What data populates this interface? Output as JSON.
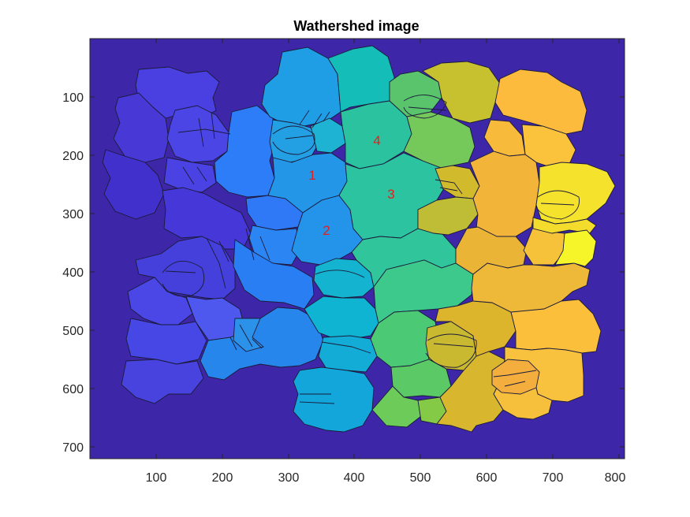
{
  "title": "Wathershed image",
  "x_ticks": [
    "100",
    "200",
    "300",
    "400",
    "500",
    "600",
    "700",
    "800"
  ],
  "y_ticks": [
    "100",
    "200",
    "300",
    "400",
    "500",
    "600",
    "700"
  ],
  "region_labels": [
    "1",
    "2",
    "3",
    "4"
  ],
  "colors": {
    "background": "#3e26a8",
    "label": "#e3201b",
    "frame": "#262626"
  }
}
